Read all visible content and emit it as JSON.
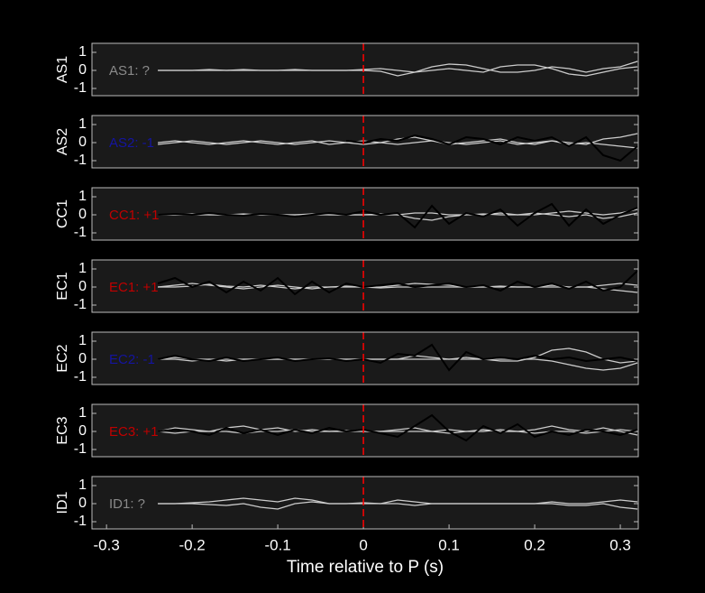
{
  "chart_data": [
    {
      "type": "line",
      "ylabel": "AS1",
      "annotation": {
        "text": "AS1: ?",
        "color": "#8a8a8a"
      },
      "x": [
        -0.32,
        -0.3,
        -0.28,
        -0.26,
        -0.24,
        -0.22,
        -0.2,
        -0.18,
        -0.16,
        -0.14,
        -0.12,
        -0.1,
        -0.08,
        -0.06,
        -0.04,
        -0.02,
        0,
        0.02,
        0.04,
        0.06,
        0.08,
        0.1,
        0.12,
        0.14,
        0.16,
        0.18,
        0.2,
        0.22,
        0.24,
        0.26,
        0.28,
        0.3,
        0.32
      ],
      "xlim": [
        -0.317,
        0.321
      ],
      "ylim": [
        -1.4,
        1.5
      ],
      "yticks": [
        -1,
        0,
        1
      ],
      "vline": 0,
      "vline_color": "#ff0000",
      "series": [
        {
          "color": "#cccccc",
          "values": [
            null,
            null,
            null,
            null,
            0,
            0,
            0,
            0,
            0,
            0.05,
            0,
            0,
            0,
            0,
            0,
            0,
            0,
            -0.05,
            -0.3,
            -0.1,
            0.2,
            0.35,
            0.3,
            0.1,
            -0.1,
            -0.1,
            0,
            0.2,
            0.1,
            -0.1,
            0.1,
            0.2,
            0.5
          ]
        },
        {
          "color": "#cccccc",
          "values": [
            null,
            null,
            null,
            null,
            0,
            0,
            0,
            0.05,
            0,
            0,
            0,
            0,
            0.05,
            0,
            0,
            0,
            0.05,
            0.1,
            0,
            -0.1,
            0,
            0.1,
            0,
            -0.1,
            0.2,
            0.3,
            0.3,
            0.1,
            -0.2,
            -0.3,
            -0.1,
            0.1,
            0.2
          ]
        }
      ]
    },
    {
      "type": "line",
      "ylabel": "AS2",
      "annotation": {
        "text": "AS2: -1",
        "color": "#1414a0"
      },
      "x": [
        -0.32,
        -0.3,
        -0.28,
        -0.26,
        -0.24,
        -0.22,
        -0.2,
        -0.18,
        -0.16,
        -0.14,
        -0.12,
        -0.1,
        -0.08,
        -0.06,
        -0.04,
        -0.02,
        0,
        0.02,
        0.04,
        0.06,
        0.08,
        0.1,
        0.12,
        0.14,
        0.16,
        0.18,
        0.2,
        0.22,
        0.24,
        0.26,
        0.28,
        0.3,
        0.32
      ],
      "xlim": [
        -0.317,
        0.321
      ],
      "ylim": [
        -1.4,
        1.5
      ],
      "yticks": [
        -1,
        0,
        1
      ],
      "vline": 0,
      "vline_color": "#ff0000",
      "series": [
        {
          "color": "#cccccc",
          "values": [
            null,
            null,
            null,
            null,
            0,
            0.1,
            0,
            -0.1,
            0,
            0.1,
            0,
            -0.1,
            0,
            0.1,
            -0.1,
            0,
            0.1,
            0,
            0.2,
            0.3,
            0.1,
            -0.1,
            0,
            0.1,
            0.2,
            0,
            -0.1,
            0.1,
            0,
            -0.1,
            0.2,
            0.3,
            0.5
          ]
        },
        {
          "color": "#cccccc",
          "values": [
            null,
            null,
            null,
            null,
            -0.1,
            0,
            0.1,
            0,
            -0.1,
            0,
            0.1,
            0,
            -0.1,
            0,
            0.1,
            0,
            -0.1,
            0,
            -0.1,
            0,
            0.1,
            0,
            -0.1,
            0,
            0.1,
            -0.1,
            0,
            0.1,
            -0.1,
            0,
            -0.1,
            -0.2,
            -0.3
          ]
        },
        {
          "color": "#000000",
          "values": [
            null,
            null,
            null,
            null,
            null,
            null,
            null,
            null,
            null,
            null,
            null,
            null,
            null,
            null,
            null,
            0.1,
            0,
            0.2,
            0.1,
            0.4,
            0.2,
            -0.1,
            0.3,
            0.2,
            -0.1,
            0.3,
            0.1,
            0.3,
            -0.2,
            0.3,
            -0.7,
            -1.0,
            -0.2
          ]
        }
      ]
    },
    {
      "type": "line",
      "ylabel": "CC1",
      "annotation": {
        "text": "CC1: +1",
        "color": "#c00000"
      },
      "x": [
        -0.32,
        -0.3,
        -0.28,
        -0.26,
        -0.24,
        -0.22,
        -0.2,
        -0.18,
        -0.16,
        -0.14,
        -0.12,
        -0.1,
        -0.08,
        -0.06,
        -0.04,
        -0.02,
        0,
        0.02,
        0.04,
        0.06,
        0.08,
        0.1,
        0.12,
        0.14,
        0.16,
        0.18,
        0.2,
        0.22,
        0.24,
        0.26,
        0.28,
        0.3,
        0.32
      ],
      "xlim": [
        -0.317,
        0.321
      ],
      "ylim": [
        -1.4,
        1.5
      ],
      "yticks": [
        -1,
        0,
        1
      ],
      "vline": 0,
      "vline_color": "#ff0000",
      "series": [
        {
          "color": "#cccccc",
          "values": [
            null,
            null,
            null,
            null,
            0,
            0,
            0,
            0,
            0,
            0.05,
            0,
            0,
            0,
            0,
            0,
            0,
            0,
            0,
            0,
            -0.2,
            -0.3,
            -0.1,
            0,
            0.05,
            0,
            0,
            0.1,
            0,
            -0.1,
            0,
            -0.2,
            -0.1,
            0.1
          ]
        },
        {
          "color": "#cccccc",
          "values": [
            null,
            null,
            null,
            null,
            0,
            0,
            0.05,
            0,
            0,
            0,
            0,
            0,
            0,
            0.05,
            0,
            0,
            0,
            0.05,
            0,
            0.1,
            0.1,
            0,
            0,
            0,
            0.1,
            0,
            0,
            0.1,
            0.2,
            0.1,
            0,
            0.1,
            0.3
          ]
        },
        {
          "color": "#000000",
          "values": [
            null,
            null,
            null,
            null,
            0,
            0.05,
            0,
            0.1,
            0,
            -0.05,
            0.05,
            0,
            -0.1,
            0,
            0.1,
            0,
            0.2,
            0,
            0.1,
            -0.7,
            0.5,
            -0.5,
            0.1,
            -0.1,
            0.3,
            -0.6,
            0.1,
            0.6,
            -0.6,
            0.3,
            -0.5,
            0,
            0.4
          ]
        }
      ]
    },
    {
      "type": "line",
      "ylabel": "EC1",
      "annotation": {
        "text": "EC1: +1",
        "color": "#c00000"
      },
      "x": [
        -0.32,
        -0.3,
        -0.28,
        -0.26,
        -0.24,
        -0.22,
        -0.2,
        -0.18,
        -0.16,
        -0.14,
        -0.12,
        -0.1,
        -0.08,
        -0.06,
        -0.04,
        -0.02,
        0,
        0.02,
        0.04,
        0.06,
        0.08,
        0.1,
        0.12,
        0.14,
        0.16,
        0.18,
        0.2,
        0.22,
        0.24,
        0.26,
        0.28,
        0.3,
        0.32
      ],
      "xlim": [
        -0.317,
        0.321
      ],
      "ylim": [
        -1.4,
        1.5
      ],
      "yticks": [
        -1,
        0,
        1
      ],
      "vline": 0,
      "vline_color": "#ff0000",
      "series": [
        {
          "color": "#cccccc",
          "values": [
            null,
            null,
            null,
            null,
            0,
            0.1,
            0.2,
            0.1,
            0,
            -0.1,
            0,
            0.1,
            0,
            -0.1,
            0,
            0.05,
            0,
            0,
            0.1,
            0.2,
            0.15,
            0.1,
            0,
            0,
            0.05,
            0,
            0,
            0,
            0,
            0,
            -0.1,
            -0.2,
            -0.3
          ]
        },
        {
          "color": "#cccccc",
          "values": [
            null,
            null,
            null,
            null,
            0,
            0,
            0.05,
            0.15,
            0.05,
            0,
            0.1,
            0,
            -0.1,
            0,
            0,
            0,
            0,
            -0.05,
            0,
            0,
            0,
            0,
            0,
            0,
            0,
            0,
            0,
            0.1,
            0,
            0,
            0.1,
            0.2,
            0.1
          ]
        },
        {
          "color": "#000000",
          "values": [
            null,
            null,
            null,
            null,
            0.2,
            0.5,
            0,
            0.3,
            -0.3,
            0.3,
            -0.2,
            0.5,
            -0.4,
            0.3,
            -0.3,
            0.2,
            0,
            0.1,
            0.2,
            0,
            0.1,
            0.2,
            0,
            0.1,
            -0.2,
            0.3,
            0,
            0.2,
            -0.1,
            0.3,
            -0.2,
            0,
            0.9
          ]
        }
      ]
    },
    {
      "type": "line",
      "ylabel": "EC2",
      "annotation": {
        "text": "EC2: -1",
        "color": "#1414a0"
      },
      "x": [
        -0.32,
        -0.3,
        -0.28,
        -0.26,
        -0.24,
        -0.22,
        -0.2,
        -0.18,
        -0.16,
        -0.14,
        -0.12,
        -0.1,
        -0.08,
        -0.06,
        -0.04,
        -0.02,
        0,
        0.02,
        0.04,
        0.06,
        0.08,
        0.1,
        0.12,
        0.14,
        0.16,
        0.18,
        0.2,
        0.22,
        0.24,
        0.26,
        0.28,
        0.3,
        0.32
      ],
      "xlim": [
        -0.317,
        0.321
      ],
      "ylim": [
        -1.4,
        1.5
      ],
      "yticks": [
        -1,
        0,
        1
      ],
      "vline": 0,
      "vline_color": "#ff0000",
      "series": [
        {
          "color": "#cccccc",
          "values": [
            null,
            null,
            null,
            null,
            0,
            0.1,
            0,
            0,
            -0.1,
            0,
            0,
            0,
            0,
            0,
            0,
            0,
            0,
            0,
            0,
            0.2,
            0.1,
            0,
            0,
            0,
            -0.1,
            -0.1,
            0.1,
            0.5,
            0.6,
            0.4,
            0,
            -0.2,
            -0.1
          ]
        },
        {
          "color": "#cccccc",
          "values": [
            null,
            null,
            null,
            null,
            0,
            0,
            -0.1,
            0,
            0,
            0,
            0,
            0,
            0,
            0,
            0,
            0,
            0,
            0,
            0,
            0,
            0,
            0,
            0.1,
            0,
            0,
            0,
            0,
            -0.1,
            -0.3,
            -0.5,
            -0.6,
            -0.5,
            -0.2
          ]
        },
        {
          "color": "#000000",
          "values": [
            null,
            null,
            null,
            null,
            0,
            0.2,
            0,
            -0.1,
            0.1,
            -0.1,
            0,
            0.1,
            -0.1,
            0,
            0.05,
            -0.1,
            0,
            -0.2,
            0.3,
            0.2,
            0.8,
            -0.6,
            0.4,
            0,
            0.1,
            0,
            0.2,
            0,
            0.1,
            -0.1,
            0,
            0.1,
            -0.1
          ]
        }
      ]
    },
    {
      "type": "line",
      "ylabel": "EC3",
      "annotation": {
        "text": "EC3: +1",
        "color": "#c00000"
      },
      "x": [
        -0.32,
        -0.3,
        -0.28,
        -0.26,
        -0.24,
        -0.22,
        -0.2,
        -0.18,
        -0.16,
        -0.14,
        -0.12,
        -0.1,
        -0.08,
        -0.06,
        -0.04,
        -0.02,
        0,
        0.02,
        0.04,
        0.06,
        0.08,
        0.1,
        0.12,
        0.14,
        0.16,
        0.18,
        0.2,
        0.22,
        0.24,
        0.26,
        0.28,
        0.3,
        0.32
      ],
      "xlim": [
        -0.317,
        0.321
      ],
      "ylim": [
        -1.4,
        1.5
      ],
      "yticks": [
        -1,
        0,
        1
      ],
      "vline": 0,
      "vline_color": "#ff0000",
      "series": [
        {
          "color": "#cccccc",
          "values": [
            null,
            null,
            null,
            null,
            0,
            0.2,
            0.1,
            0,
            0.2,
            0.3,
            0.1,
            0.2,
            0,
            0.1,
            0,
            0.05,
            0,
            0,
            0.1,
            0.2,
            0,
            0.1,
            0,
            0,
            0.1,
            0,
            0.1,
            0.3,
            0.1,
            0,
            0.2,
            0,
            -0.2
          ]
        },
        {
          "color": "#cccccc",
          "values": [
            null,
            null,
            null,
            null,
            0,
            -0.1,
            0,
            0,
            0,
            -0.1,
            0,
            0,
            0.1,
            0,
            0,
            0,
            0,
            0,
            0,
            0,
            0,
            -0.1,
            0,
            0.1,
            0,
            0,
            -0.1,
            0,
            0,
            -0.1,
            0,
            0.1,
            0
          ]
        },
        {
          "color": "#000000",
          "values": [
            null,
            null,
            null,
            null,
            0,
            0.1,
            0,
            -0.2,
            0.2,
            -0.1,
            0.1,
            -0.2,
            0.1,
            -0.1,
            0.2,
            0,
            0.1,
            -0.1,
            -0.3,
            0.3,
            0.9,
            0,
            -0.5,
            0.3,
            -0.1,
            0.4,
            -0.3,
            0,
            -0.2,
            0.1,
            0,
            -0.2,
            0.1
          ]
        }
      ]
    },
    {
      "type": "line",
      "ylabel": "ID1",
      "annotation": {
        "text": "ID1: ?",
        "color": "#8a8a8a"
      },
      "x": [
        -0.32,
        -0.3,
        -0.28,
        -0.26,
        -0.24,
        -0.22,
        -0.2,
        -0.18,
        -0.16,
        -0.14,
        -0.12,
        -0.1,
        -0.08,
        -0.06,
        -0.04,
        -0.02,
        0,
        0.02,
        0.04,
        0.06,
        0.08,
        0.1,
        0.12,
        0.14,
        0.16,
        0.18,
        0.2,
        0.22,
        0.24,
        0.26,
        0.28,
        0.3,
        0.32
      ],
      "xlim": [
        -0.317,
        0.321
      ],
      "ylim": [
        -1.4,
        1.5
      ],
      "yticks": [
        -1,
        0,
        1
      ],
      "vline": 0,
      "vline_color": "#ff0000",
      "xticks": [
        -0.3,
        -0.2,
        -0.1,
        0,
        0.1,
        0.2,
        0.3
      ],
      "xlabel": "Time relative to P (s)",
      "series": [
        {
          "color": "#cccccc",
          "values": [
            null,
            null,
            null,
            null,
            0,
            0,
            0.05,
            0.1,
            0.2,
            0.3,
            0.2,
            0.1,
            0.3,
            0.2,
            0,
            0,
            0.05,
            0,
            0.2,
            0.1,
            0,
            0,
            0,
            0,
            0,
            0,
            0,
            0.1,
            0,
            0,
            0.1,
            0.2,
            0.1
          ]
        },
        {
          "color": "#cccccc",
          "values": [
            null,
            null,
            null,
            null,
            0,
            0,
            0,
            -0.05,
            -0.1,
            0,
            -0.2,
            -0.3,
            0,
            0.1,
            0,
            0,
            0,
            0,
            0,
            -0.1,
            0,
            0,
            0,
            0,
            0,
            0,
            0,
            0,
            -0.1,
            -0.1,
            0,
            -0.2,
            -0.3
          ]
        }
      ]
    }
  ]
}
